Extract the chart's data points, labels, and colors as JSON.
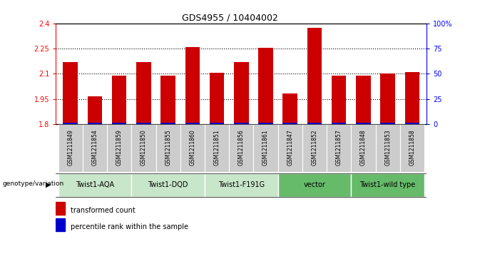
{
  "title": "GDS4955 / 10404002",
  "samples": [
    "GSM1211849",
    "GSM1211854",
    "GSM1211859",
    "GSM1211850",
    "GSM1211855",
    "GSM1211860",
    "GSM1211851",
    "GSM1211856",
    "GSM1211861",
    "GSM1211847",
    "GSM1211852",
    "GSM1211857",
    "GSM1211848",
    "GSM1211853",
    "GSM1211858"
  ],
  "red_values": [
    2.17,
    1.965,
    2.09,
    2.17,
    2.09,
    2.26,
    2.105,
    2.17,
    2.255,
    1.985,
    2.375,
    2.09,
    2.09,
    2.1,
    2.11
  ],
  "blue_values_pct": [
    2,
    2,
    2,
    2,
    2,
    2,
    2,
    2,
    2,
    2,
    2,
    2,
    2,
    2,
    2
  ],
  "groups": [
    {
      "label": "Twist1-AQA",
      "start": 0,
      "end": 3,
      "color": "#c8e6c9"
    },
    {
      "label": "Twist1-DQD",
      "start": 3,
      "end": 6,
      "color": "#c8e6c9"
    },
    {
      "label": "Twist1-F191G",
      "start": 6,
      "end": 9,
      "color": "#c8e6c9"
    },
    {
      "label": "vector",
      "start": 9,
      "end": 12,
      "color": "#66bb6a"
    },
    {
      "label": "Twist1-wild type",
      "start": 12,
      "end": 15,
      "color": "#66bb6a"
    }
  ],
  "ymin": 1.8,
  "ymax": 2.4,
  "yticks": [
    1.8,
    1.95,
    2.1,
    2.25,
    2.4
  ],
  "ytick_labels": [
    "1.8",
    "1.95",
    "2.1",
    "2.25",
    "2.4"
  ],
  "hlines": [
    1.95,
    2.1,
    2.25
  ],
  "y2ticks_pct": [
    0,
    25,
    50,
    75,
    100
  ],
  "y2tick_labels": [
    "0",
    "25",
    "50",
    "75",
    "100%"
  ],
  "bar_color": "#cc0000",
  "blue_color": "#0000cc",
  "sample_bg": "#cccccc",
  "genotype_label": "genotype/variation",
  "legend_red": "transformed count",
  "legend_blue": "percentile rank within the sample",
  "bar_width": 0.6
}
